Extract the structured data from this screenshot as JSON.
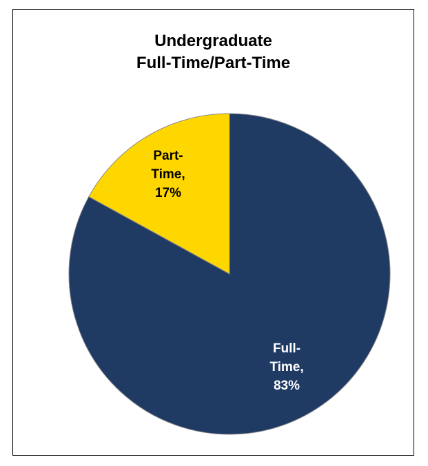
{
  "chart_data": {
    "type": "pie",
    "title_lines": [
      "Undergraduate",
      "Full-Time/Part-Time"
    ],
    "slices": [
      {
        "name": "Part-Time",
        "value": 17,
        "label_lines": [
          "Part-",
          "Time,",
          "17%"
        ],
        "color": "#FFD700",
        "label_color": "#000000"
      },
      {
        "name": "Full-Time",
        "value": 83,
        "label_lines": [
          "Full-",
          "Time,",
          "83%"
        ],
        "color": "#1F3A63",
        "label_color": "#FFFFFF"
      }
    ],
    "legend": "none"
  }
}
